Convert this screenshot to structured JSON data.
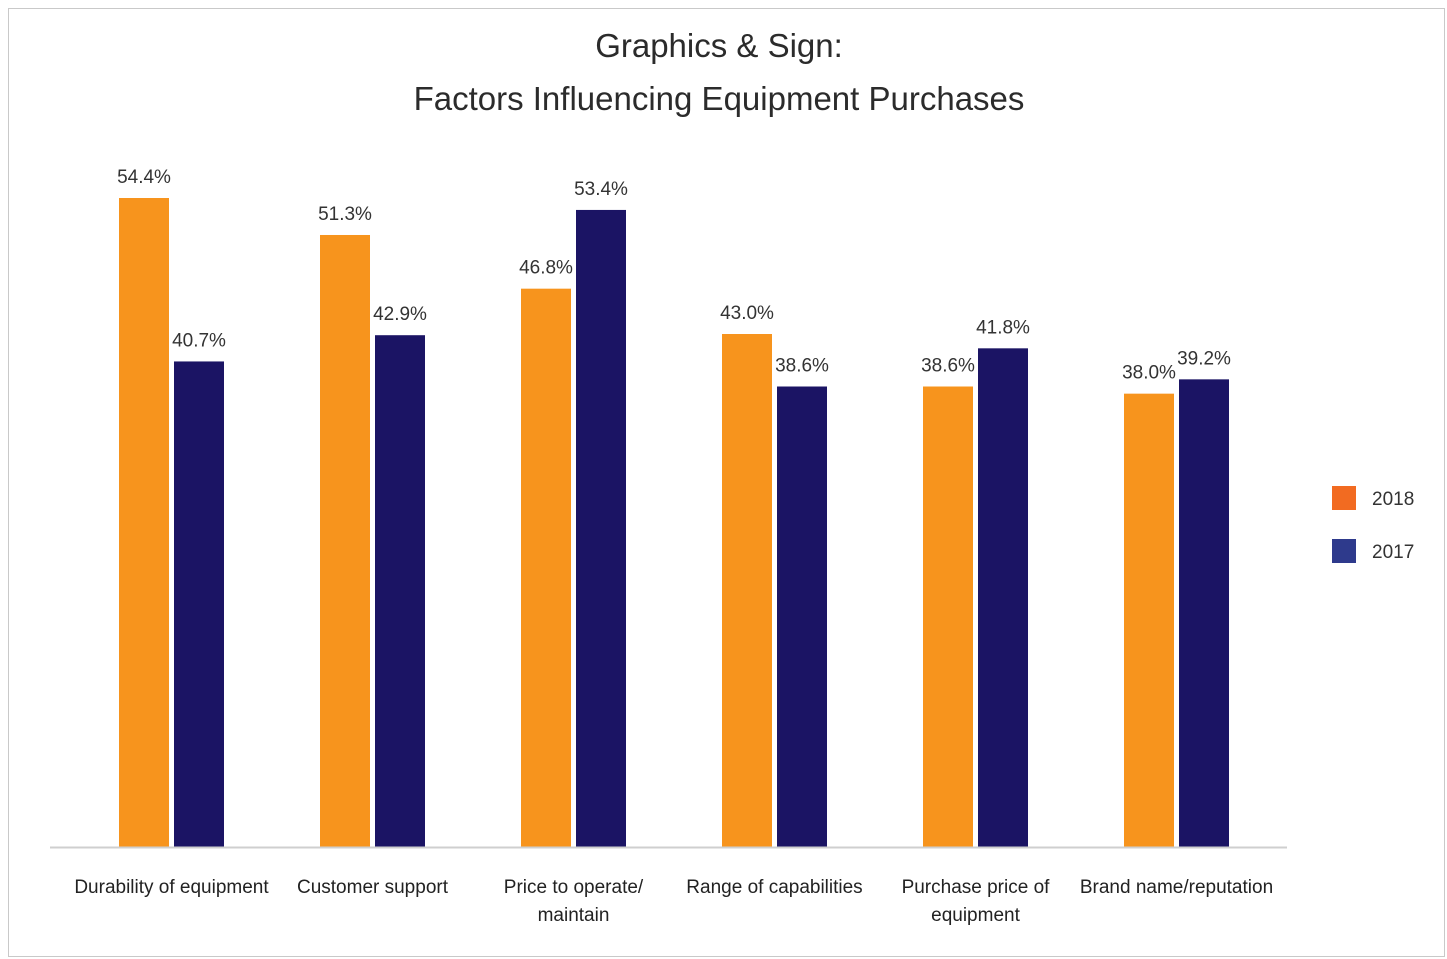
{
  "chart_data": {
    "type": "bar",
    "title_lines": [
      "Graphics & Sign:",
      "Factors Influencing Equipment Purchases"
    ],
    "xlabel": "",
    "ylabel": "",
    "categories": [
      [
        "Durability of equipment"
      ],
      [
        "Customer support"
      ],
      [
        "Price to operate/",
        "maintain"
      ],
      [
        "Range of capabilities"
      ],
      [
        "Purchase price of",
        "equipment"
      ],
      [
        "Brand name/reputation"
      ]
    ],
    "series": [
      {
        "name": "2018",
        "color": "#F7941D",
        "legend_color": "#F26B21",
        "values": [
          54.4,
          51.3,
          46.8,
          43.0,
          38.6,
          38.0
        ],
        "labels": [
          "54.4%",
          "51.3%",
          "46.8%",
          "43.0%",
          "38.6%",
          "38.0%"
        ]
      },
      {
        "name": "2017",
        "color": "#1B1464",
        "legend_color": "#2E3A8C",
        "values": [
          40.7,
          42.9,
          53.4,
          38.6,
          41.8,
          39.2
        ],
        "labels": [
          "40.7%",
          "42.9%",
          "53.4%",
          "38.6%",
          "41.8%",
          "39.2%"
        ]
      }
    ],
    "ylim": [
      0,
      60
    ],
    "grid": false,
    "legend_position": "right"
  }
}
